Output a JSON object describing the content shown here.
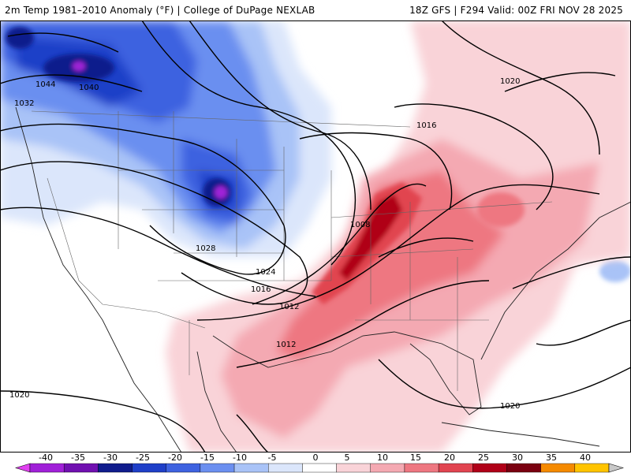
{
  "header": {
    "left_title": "2m Temp 1981–2010 Anomaly (°F) | College of DuPage NEXLAB",
    "right_title": "18Z GFS | F294 Valid: 00Z FRI NOV 28 2025"
  },
  "isobar_labels": [
    "1044",
    "1040",
    "1032",
    "1020",
    "1016",
    "1028",
    "1024",
    "1008",
    "1016",
    "1012",
    "1012",
    "1020",
    "1020"
  ],
  "colorbar": {
    "ticks": [
      "-40",
      "-35",
      "-30",
      "-25",
      "-20",
      "-15",
      "-10",
      "-5",
      "0",
      "5",
      "10",
      "15",
      "20",
      "25",
      "30",
      "35",
      "40"
    ],
    "colors": [
      "#e040f0",
      "#a020d8",
      "#7010b0",
      "#101c8c",
      "#1f3fc8",
      "#3e62e0",
      "#6b8ff0",
      "#a9c3f7",
      "#dbe6fb",
      "#ffffff",
      "#f9d3d8",
      "#f4a9b2",
      "#ee7781",
      "#e14450",
      "#b00018",
      "#7a0010",
      "#f58a00",
      "#ffc400",
      "#c8c8c8"
    ]
  }
}
